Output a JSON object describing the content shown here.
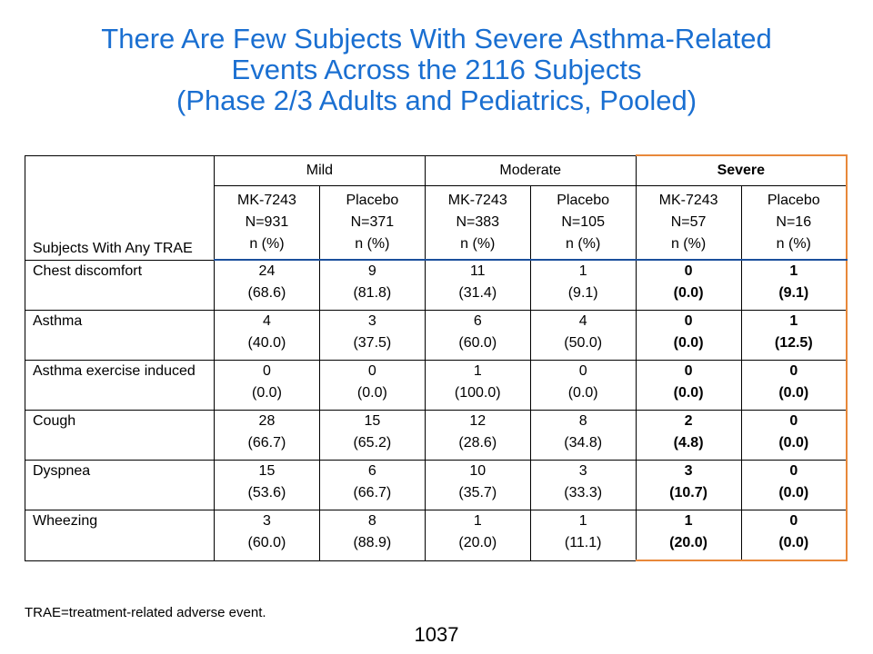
{
  "title": {
    "line1": "There Are Few Subjects With Severe Asthma-Related",
    "line2": "Events Across the 2116 Subjects",
    "line3": "(Phase 2/3 Adults and Pediatrics, Pooled)"
  },
  "table": {
    "row_header": "Subjects With Any TRAE",
    "groups": [
      "Mild",
      "Moderate",
      "Severe"
    ],
    "arms": [
      {
        "line1": "MK-7243",
        "line2": "N=931",
        "line3": "n (%)"
      },
      {
        "line1": "Placebo",
        "line2": "N=371",
        "line3": "n (%)"
      },
      {
        "line1": "MK-7243",
        "line2": "N=383",
        "line3": "n (%)"
      },
      {
        "line1": "Placebo",
        "line2": "N=105",
        "line3": "n (%)"
      },
      {
        "line1": "MK-7243",
        "line2": "N=57",
        "line3": "n (%)"
      },
      {
        "line1": "Placebo",
        "line2": "N=16",
        "line3": "n (%)"
      }
    ],
    "rows": [
      {
        "label": "Chest discomfort",
        "cells": [
          [
            "24",
            "(68.6)"
          ],
          [
            "9",
            "(81.8)"
          ],
          [
            "11",
            "(31.4)"
          ],
          [
            "1",
            "(9.1)"
          ],
          [
            "0",
            "(0.0)"
          ],
          [
            "1",
            "(9.1)"
          ]
        ]
      },
      {
        "label": "Asthma",
        "cells": [
          [
            "4",
            "(40.0)"
          ],
          [
            "3",
            "(37.5)"
          ],
          [
            "6",
            "(60.0)"
          ],
          [
            "4",
            "(50.0)"
          ],
          [
            "0",
            "(0.0)"
          ],
          [
            "1",
            "(12.5)"
          ]
        ]
      },
      {
        "label": "Asthma exercise induced",
        "cells": [
          [
            "0",
            "(0.0)"
          ],
          [
            "0",
            "(0.0)"
          ],
          [
            "1",
            "(100.0)"
          ],
          [
            "0",
            "(0.0)"
          ],
          [
            "0",
            "(0.0)"
          ],
          [
            "0",
            "(0.0)"
          ]
        ]
      },
      {
        "label": "Cough",
        "cells": [
          [
            "28",
            "(66.7)"
          ],
          [
            "15",
            "(65.2)"
          ],
          [
            "12",
            "(28.6)"
          ],
          [
            "8",
            "(34.8)"
          ],
          [
            "2",
            "(4.8)"
          ],
          [
            "0",
            "(0.0)"
          ]
        ]
      },
      {
        "label": "Dyspnea",
        "cells": [
          [
            "15",
            "(53.6)"
          ],
          [
            "6",
            "(66.7)"
          ],
          [
            "10",
            "(35.7)"
          ],
          [
            "3",
            "(33.3)"
          ],
          [
            "3",
            "(10.7)"
          ],
          [
            "0",
            "(0.0)"
          ]
        ]
      },
      {
        "label": "Wheezing",
        "cells": [
          [
            "3",
            "(60.0)"
          ],
          [
            "8",
            "(88.9)"
          ],
          [
            "1",
            "(20.0)"
          ],
          [
            "1",
            "(11.1)"
          ],
          [
            "1",
            "(20.0)"
          ],
          [
            "0",
            "(0.0)"
          ]
        ]
      }
    ]
  },
  "footnote": "TRAE=treatment-related adverse event.",
  "page_number": "1037",
  "colors": {
    "title": "#1a6fd1",
    "header_rule": "#1a4f9c",
    "severe_highlight": "#e8883a"
  }
}
